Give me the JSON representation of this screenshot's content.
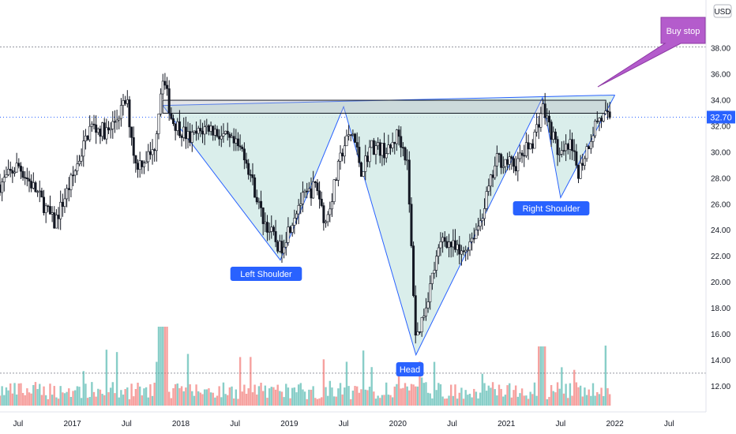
{
  "chart_data": {
    "type": "candlestick",
    "currency": "USD",
    "last_price": "32.70",
    "y_ticks": [
      "38.00",
      "36.00",
      "34.00",
      "32.00",
      "30.00",
      "28.00",
      "26.00",
      "24.00",
      "22.00",
      "20.00",
      "18.00",
      "16.00",
      "14.00",
      "12.00"
    ],
    "y_range": [
      10.5,
      40.5
    ],
    "x_ticks": [
      "Jul",
      "2017",
      "Jul",
      "2018",
      "Jul",
      "2019",
      "Jul",
      "2020",
      "Jul",
      "2021",
      "Jul",
      "2022",
      "Jul"
    ],
    "x_range": [
      "2016-05",
      "2023-01"
    ],
    "annotations": {
      "left_shoulder": "Left Shoulder",
      "head": "Head",
      "right_shoulder": "Right Shoulder",
      "buy_stop": "Buy stop"
    },
    "pattern": {
      "neckline_zone": [
        33.0,
        34.0
      ],
      "neckline_start_x": "2017-11",
      "neckline_end_x": "2021-12",
      "pivots": [
        {
          "x": "2017-11",
          "y": 33.6
        },
        {
          "x": "2018-12",
          "y": 21.7
        },
        {
          "x": "2019-07",
          "y": 33.5
        },
        {
          "x": "2020-03",
          "y": 14.4
        },
        {
          "x": "2021-05",
          "y": 34.2
        },
        {
          "x": "2021-07",
          "y": 26.5
        },
        {
          "x": "2022-01",
          "y": 34.4
        }
      ],
      "resistance_level": 38.1,
      "volume_level": 13.0
    },
    "volume_note": "Volume bars shown at bottom",
    "colors": {
      "up": "#26a69a",
      "down": "#ef5350",
      "pattern_fill": "#d6ece9",
      "pattern_line": "#2962ff",
      "label_bg": "#2962ff",
      "buy_stop_bg": "#b45ccc",
      "price_tag": "#2962ff"
    }
  }
}
